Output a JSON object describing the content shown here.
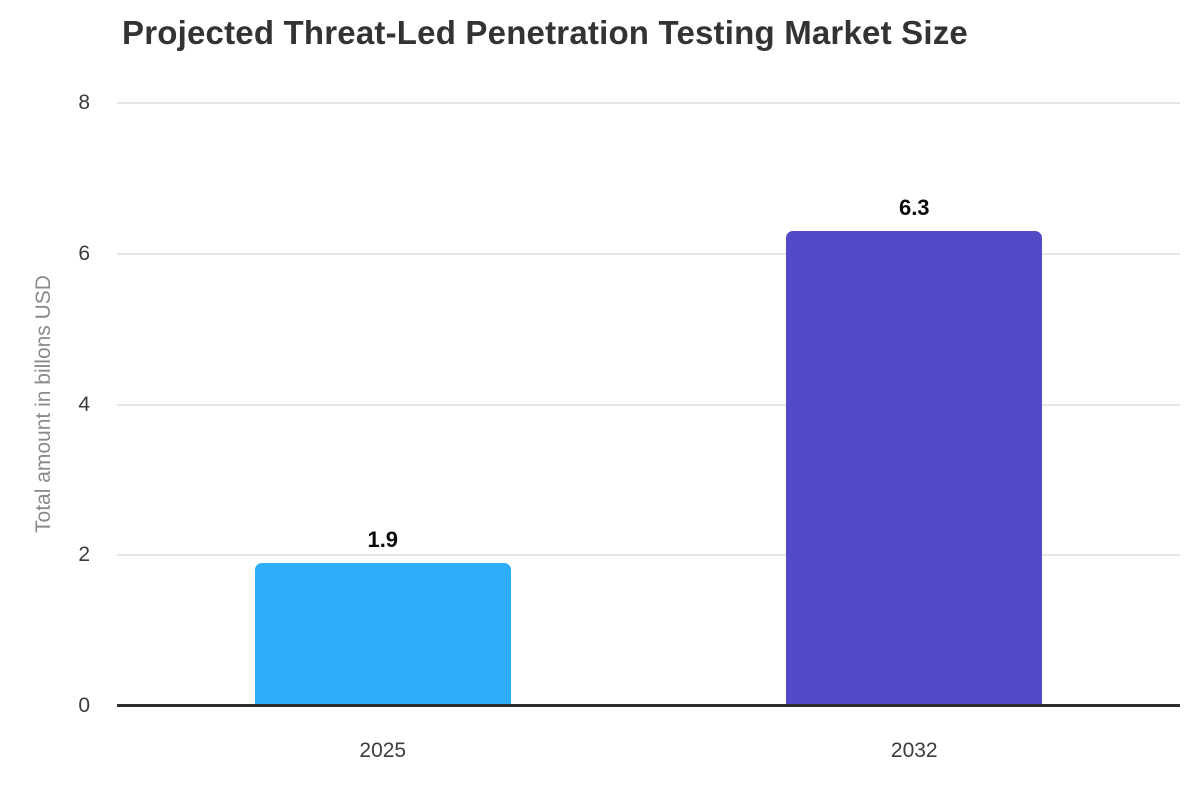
{
  "chart_data": {
    "type": "bar",
    "title": "Projected Threat-Led Penetration Testing Market Size",
    "categories": [
      "2025",
      "2032"
    ],
    "values": [
      1.9,
      6.3
    ],
    "value_labels": [
      "1.9",
      "6.3"
    ],
    "bar_colors": [
      "#2DACF9",
      "#5149C5"
    ],
    "xlabel": "",
    "ylabel": "Total amount in billons USD",
    "ylim": [
      0,
      8
    ],
    "yticks": [
      0,
      2,
      4,
      6,
      8
    ],
    "grid": true,
    "legend": false
  },
  "colors": {
    "background": "#ffffff",
    "title": "#333333",
    "tick": "#3c3c3c",
    "axis_label": "#8a8a8a",
    "gridline": "#e6e6e6",
    "axis_line": "#2e2e2e",
    "value_label": "#0a0a0a"
  }
}
